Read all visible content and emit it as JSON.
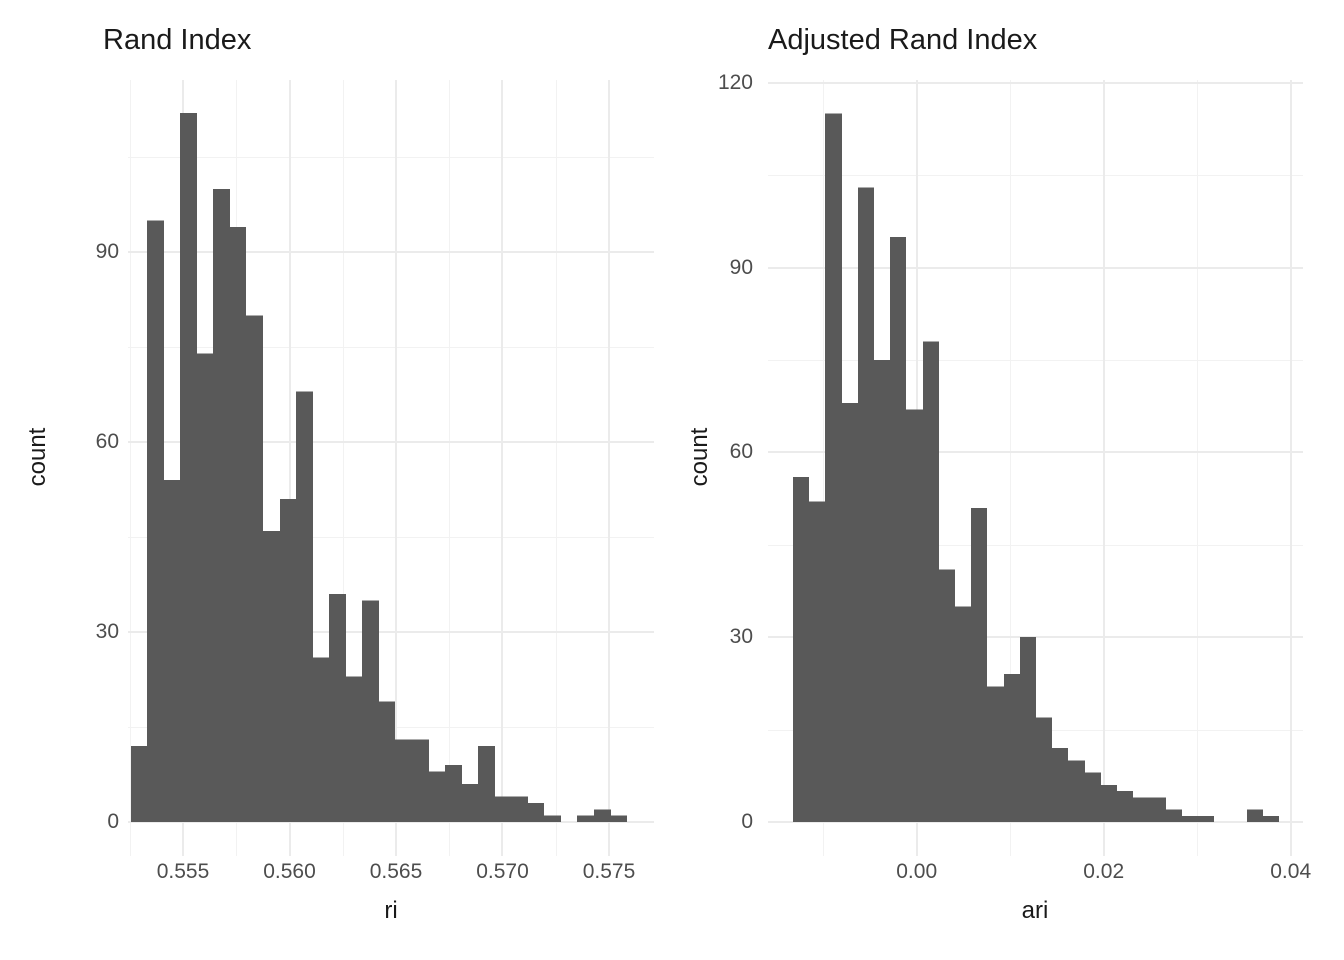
{
  "figure": {
    "background": "#ffffff",
    "kind": "side-by-side ggplot histograms"
  },
  "colors": {
    "bar": "#595959",
    "grid_major": "#ebebeb",
    "grid_minor": "#f2f2f2",
    "tick_text": "#4d4d4d",
    "text": "#1a1a1a"
  },
  "chart_data": [
    {
      "type": "bar",
      "subtype": "histogram",
      "title": "Rand Index",
      "xlabel": "ri",
      "ylabel": "count",
      "grid": true,
      "legend": "none",
      "bin_start": 0.55254,
      "bin_width": 0.000777,
      "counts": [
        12,
        95,
        54,
        112,
        74,
        100,
        94,
        80,
        46,
        51,
        68,
        26,
        36,
        23,
        35,
        19,
        13,
        13,
        8,
        9,
        6,
        12,
        4,
        4,
        3,
        1,
        0,
        1,
        2,
        1
      ],
      "x_major_breaks": [
        0.555,
        0.56,
        0.565,
        0.57,
        0.575
      ],
      "x_major_labels": [
        "0.555",
        "0.560",
        "0.565",
        "0.570",
        "0.575"
      ],
      "x_minor_breaks": [
        0.5525,
        0.5575,
        0.5625,
        0.5675,
        0.5725
      ],
      "y_major_breaks": [
        0,
        30,
        60,
        90
      ],
      "y_major_labels": [
        "0",
        "30",
        "60",
        "90"
      ],
      "y_minor_breaks": [
        15,
        45,
        75,
        105
      ],
      "xlim": [
        0.5513,
        0.577
      ],
      "ylim": [
        0,
        117.6
      ]
    },
    {
      "type": "bar",
      "subtype": "histogram",
      "title": "Adjusted Rand Index",
      "xlabel": "ari",
      "ylabel": "count",
      "grid": true,
      "legend": "none",
      "bin_start": -0.01323,
      "bin_width": 0.001733,
      "counts": [
        56,
        52,
        115,
        68,
        103,
        75,
        95,
        67,
        78,
        41,
        35,
        51,
        22,
        24,
        30,
        17,
        12,
        10,
        8,
        6,
        5,
        4,
        4,
        2,
        1,
        1,
        0,
        0,
        2,
        1
      ],
      "x_major_breaks": [
        0,
        0.02,
        0.04
      ],
      "x_major_labels": [
        "0.00",
        "0.02",
        "0.04"
      ],
      "x_minor_breaks": [
        -0.01,
        0.01,
        0.03
      ],
      "y_major_breaks": [
        0,
        30,
        60,
        90,
        120
      ],
      "y_major_labels": [
        "0",
        "30",
        "60",
        "90",
        "120"
      ],
      "y_minor_breaks": [
        15,
        45,
        75,
        105
      ],
      "xlim": [
        -0.0158,
        0.0414
      ],
      "ylim": [
        0,
        120.8
      ]
    }
  ]
}
